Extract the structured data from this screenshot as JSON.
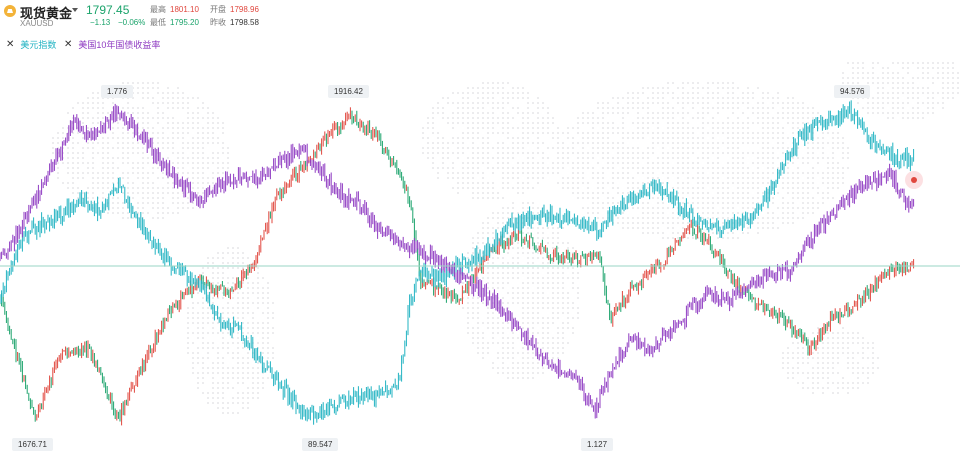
{
  "symbol": {
    "name": "现货黄金",
    "code": "XAUUSD",
    "price": "1797.45",
    "change": "−1.13",
    "change_pct": "−0.06%"
  },
  "stats": {
    "high_label": "最高",
    "high": "1801.10",
    "open_label": "开盘",
    "open": "1798.96",
    "low_label": "最低",
    "low": "1795.20",
    "prev_label": "昨收",
    "prev": "1798.58"
  },
  "legend": [
    {
      "label": "美元指数",
      "color": "#21b3c2"
    },
    {
      "label": "美国10年国债收益率",
      "color": "#8f3bc2"
    }
  ],
  "annotations": {
    "a1": "1.776",
    "a2": "1916.42",
    "a3": "94.576",
    "a4": "1676.71",
    "a5": "89.547",
    "a6": "1.127"
  },
  "colors": {
    "gold_up": "#e0473e",
    "gold_down": "#1ba36b",
    "dollar_index": "#21b3c2",
    "treasury_yield": "#8f3bc2",
    "price_line": "#9ad6c6",
    "dot_map": "#ececee"
  },
  "icons": {
    "symbol_icon": "gold-ingot-icon",
    "dropdown": "caret-down-icon",
    "remove": "close-icon"
  }
}
